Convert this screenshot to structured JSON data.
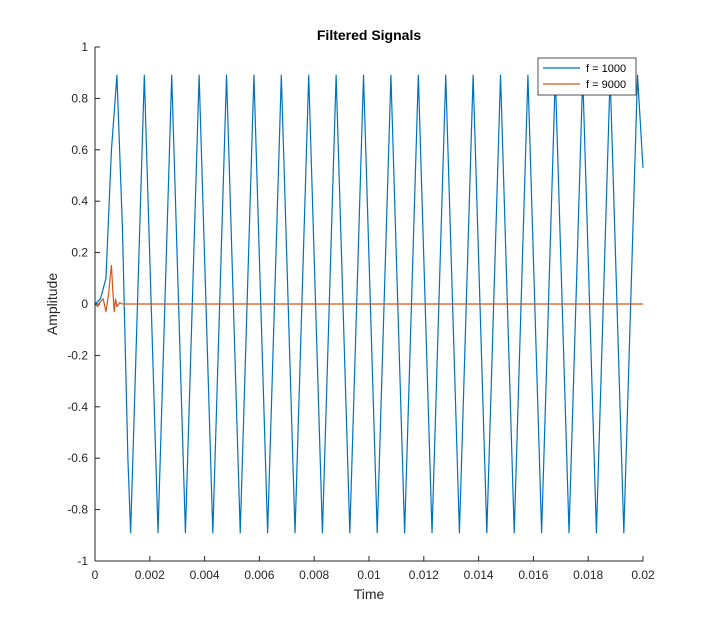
{
  "chart_data": {
    "type": "line",
    "title": "Filtered Signals",
    "xlabel": "Time",
    "ylabel": "Amplitude",
    "xlim": [
      0,
      0.02
    ],
    "ylim": [
      -1,
      1
    ],
    "xticks": [
      0,
      0.002,
      0.004,
      0.006,
      0.008,
      0.01,
      0.012,
      0.014,
      0.016,
      0.018,
      0.02
    ],
    "xtick_labels": [
      "0",
      "0.002",
      "0.004",
      "0.006",
      "0.008",
      "0.01",
      "0.012",
      "0.014",
      "0.016",
      "0.018",
      "0.02"
    ],
    "yticks": [
      -1,
      -0.8,
      -0.6,
      -0.4,
      -0.2,
      0,
      0.2,
      0.4,
      0.6,
      0.8,
      1
    ],
    "ytick_labels": [
      "-1",
      "-0.8",
      "-0.6",
      "-0.4",
      "-0.2",
      "0",
      "0.2",
      "0.4",
      "0.6",
      "0.8",
      "1"
    ],
    "grid": false,
    "legend_position": "top-right",
    "series": [
      {
        "name": "f = 1000",
        "color": "#0072BD",
        "x": [
          0,
          0.0002,
          0.0004,
          0.0006,
          0.0008,
          0.001,
          0.0012,
          0.0013,
          0.0018,
          0.0023,
          0.0028,
          0.0033,
          0.0038,
          0.0043,
          0.0048,
          0.0053,
          0.0058,
          0.0063,
          0.0068,
          0.0073,
          0.0078,
          0.0083,
          0.0088,
          0.0093,
          0.0098,
          0.0103,
          0.0108,
          0.0113,
          0.0118,
          0.0123,
          0.0128,
          0.0133,
          0.0138,
          0.0143,
          0.0148,
          0.0153,
          0.0158,
          0.0163,
          0.0168,
          0.0173,
          0.0178,
          0.0183,
          0.0188,
          0.0193,
          0.0198,
          0.02
        ],
        "y": [
          0,
          0.02,
          0.1,
          0.6,
          0.89,
          0.3,
          -0.6,
          -0.89,
          0.89,
          -0.89,
          0.89,
          -0.89,
          0.89,
          -0.89,
          0.89,
          -0.89,
          0.89,
          -0.89,
          0.89,
          -0.89,
          0.89,
          -0.89,
          0.89,
          -0.89,
          0.89,
          -0.89,
          0.89,
          -0.89,
          0.89,
          -0.89,
          0.89,
          -0.89,
          0.89,
          -0.89,
          0.89,
          -0.89,
          0.89,
          -0.89,
          0.89,
          -0.89,
          0.89,
          -0.89,
          0.89,
          -0.89,
          0.89,
          0.53
        ]
      },
      {
        "name": "f = 9000",
        "color": "#D95319",
        "x": [
          0,
          0.0001,
          0.0002,
          0.0003,
          0.0004,
          0.0005,
          0.00055,
          0.0006,
          0.00065,
          0.0007,
          0.00075,
          0.0008,
          0.0009,
          0.001,
          0.0011,
          0.0012,
          0.02
        ],
        "y": [
          0,
          -0.01,
          0.01,
          0.02,
          -0.03,
          0.04,
          0.1,
          0.15,
          0.05,
          -0.03,
          0.02,
          -0.01,
          0.005,
          0,
          0,
          0,
          0
        ]
      }
    ]
  }
}
